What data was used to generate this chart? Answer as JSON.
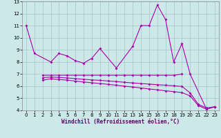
{
  "xlabel": "Windchill (Refroidissement éolien,°C)",
  "x_values": [
    0,
    1,
    2,
    3,
    4,
    5,
    6,
    7,
    8,
    9,
    10,
    11,
    12,
    13,
    14,
    15,
    16,
    17,
    18,
    19,
    20,
    21,
    22,
    23
  ],
  "series": [
    [
      11.0,
      8.7,
      null,
      8.0,
      8.7,
      8.5,
      8.1,
      7.9,
      8.3,
      9.1,
      null,
      7.5,
      null,
      9.3,
      11.0,
      11.0,
      12.7,
      11.5,
      8.0,
      9.5,
      7.0,
      null,
      4.1,
      4.3
    ],
    [
      null,
      null,
      6.9,
      6.9,
      6.9,
      6.9,
      6.9,
      6.9,
      6.9,
      6.9,
      6.9,
      6.9,
      6.9,
      6.9,
      6.9,
      6.9,
      6.9,
      6.9,
      6.9,
      7.0,
      null,
      null,
      null,
      null
    ],
    [
      null,
      null,
      6.7,
      6.75,
      6.72,
      6.68,
      6.62,
      6.57,
      6.52,
      6.48,
      6.43,
      6.38,
      6.32,
      6.27,
      6.22,
      6.17,
      6.12,
      6.08,
      6.03,
      5.98,
      5.45,
      4.5,
      4.2,
      4.3
    ],
    [
      null,
      null,
      6.5,
      6.6,
      6.55,
      6.5,
      6.42,
      6.35,
      6.28,
      6.22,
      6.15,
      6.08,
      6.0,
      5.93,
      5.85,
      5.77,
      5.7,
      5.62,
      5.55,
      5.47,
      5.2,
      4.4,
      4.1,
      4.3
    ]
  ],
  "bg_color": "#cce8e8",
  "grid_color": "#aacccc",
  "line_color": "#aa00aa",
  "marker": "D",
  "marker_size": 2.0,
  "line_width": 0.8,
  "ylim_min": 4,
  "ylim_max": 13,
  "xlim_min": -0.5,
  "xlim_max": 23.5,
  "yticks": [
    4,
    5,
    6,
    7,
    8,
    9,
    10,
    11,
    12,
    13
  ],
  "xticks": [
    0,
    1,
    2,
    3,
    4,
    5,
    6,
    7,
    8,
    9,
    10,
    11,
    12,
    13,
    14,
    15,
    16,
    17,
    18,
    19,
    20,
    21,
    22,
    23
  ],
  "tick_fontsize": 5.0,
  "xlabel_fontsize": 5.5
}
